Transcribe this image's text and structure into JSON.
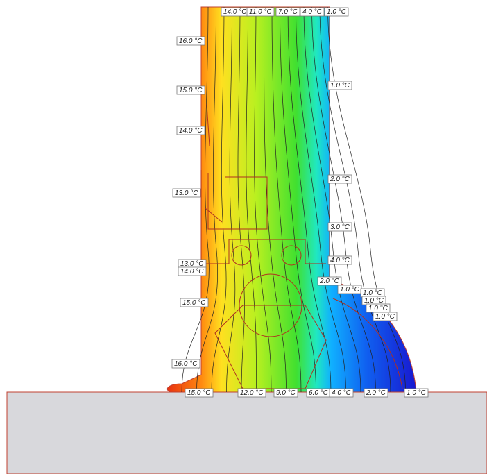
{
  "labels": {
    "top": [
      "14.0 °C",
      "11.0 °C",
      "7.0 °C",
      "4.0 °C",
      "1.0 °C"
    ],
    "left": [
      "16.0 °C",
      "15.0 °C",
      "14.0 °C",
      "13.0 °C",
      "13.0 °C",
      "14.0 °C",
      "15.0 °C",
      "16.0 °C"
    ],
    "right": [
      "1.0 °C",
      "2.0 °C",
      "3.0 °C",
      "4.0 °C",
      "2.0 °C",
      "1.0 °C",
      "1.0 °C",
      "1.0 °C",
      "1.0 °C",
      "1.0 °C"
    ],
    "bottom": [
      "15.0 °C",
      "12.0 °C",
      "9.0 °C",
      "6.0 °C",
      "4.0 °C",
      "2.0 °C",
      "1.0 °C"
    ]
  }
}
